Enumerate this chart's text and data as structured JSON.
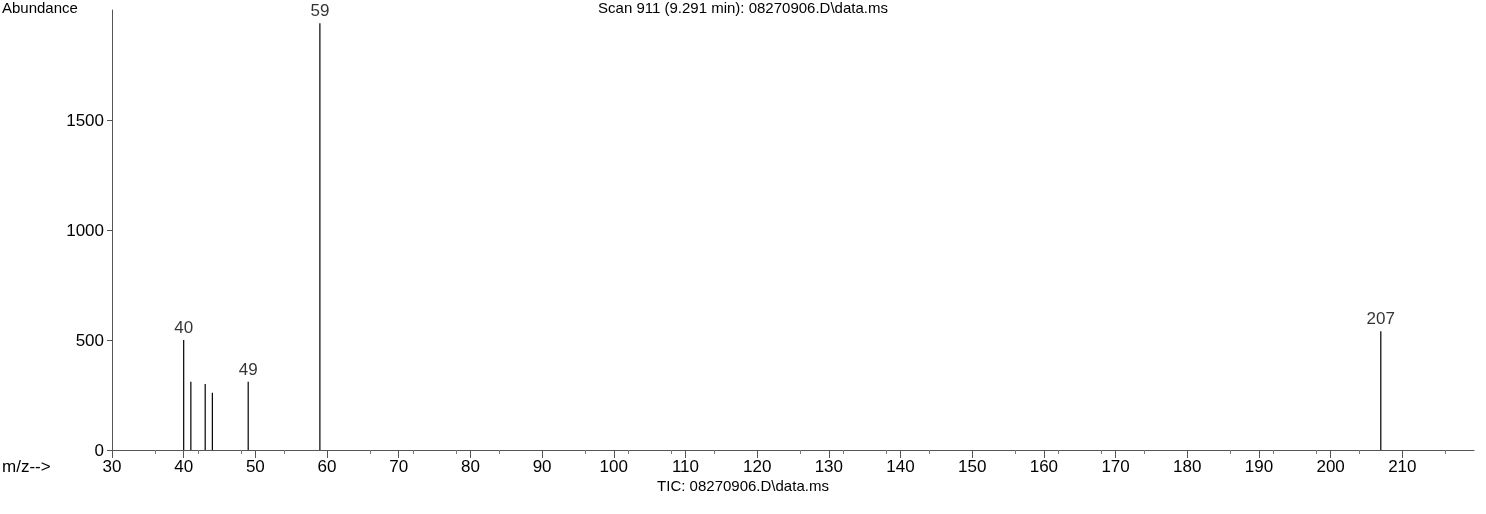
{
  "chart_data": {
    "type": "bar",
    "title": "Scan 911 (9.291 min): 08270906.D\\data.ms",
    "xlabel": "m/z-->",
    "ylabel": "Abundance",
    "x": [
      40,
      41,
      43,
      44,
      49,
      59,
      207
    ],
    "values": [
      500,
      310,
      300,
      260,
      310,
      1940,
      540
    ],
    "color": "#000000",
    "xlim": [
      30,
      220
    ],
    "xticks": [
      30,
      40,
      50,
      60,
      70,
      80,
      90,
      100,
      110,
      120,
      130,
      140,
      150,
      160,
      170,
      180,
      190,
      200,
      210
    ],
    "ylim": [
      0,
      2000
    ],
    "yticks": [
      0,
      500,
      1000,
      1500
    ],
    "annotations": [
      {
        "text": "40",
        "x": 40,
        "y": 500
      },
      {
        "text": "49",
        "x": 49,
        "y": 310
      },
      {
        "text": "59",
        "x": 59,
        "y": 1940
      },
      {
        "text": "207",
        "x": 207,
        "y": 540
      },
      "TIC: 08270906.D\\data.ms"
    ],
    "grid": false
  }
}
